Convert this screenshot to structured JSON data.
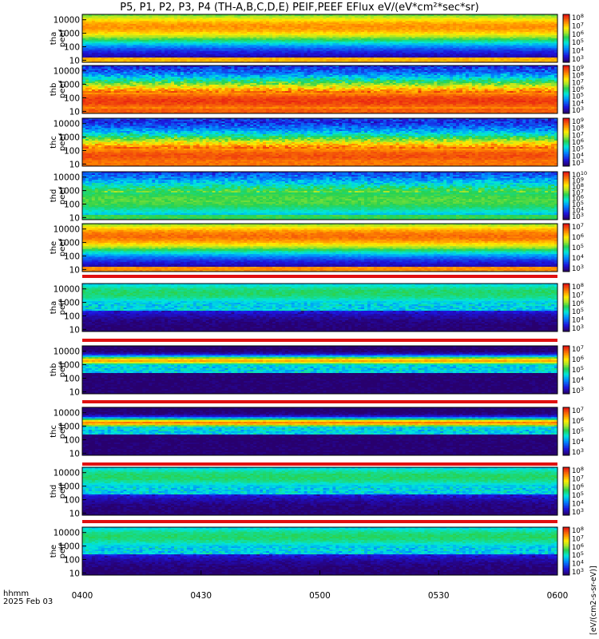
{
  "title": "P5, P1, P2, P3, P4 (TH-A,B,C,D,E) PEIF,PEEF EFlux eV/(eV*cm²*sec*sr)",
  "colorbar_title": "[eV/(cm2-s-sr-eV)]",
  "bottom_labels": [
    "hhmm",
    "2025 Feb 03"
  ],
  "x_ticks": [
    "0400",
    "0430",
    "0500",
    "0530",
    "0600"
  ],
  "y_tick_labels": [
    "10000",
    "1000",
    "100",
    "10"
  ],
  "chart_data": {
    "type": "heatmap",
    "title": "P5, P1, P2, P3, P4 (TH-A,B,C,D,E) PEIF,PEEF EFlux eV/(eV*cm²*sec*sr)",
    "x_range": [
      "04:00",
      "06:00"
    ],
    "date": "2025 Feb 03",
    "y_scale": "log",
    "y_range_eV": [
      7,
      25000
    ],
    "grid": false,
    "panels": [
      {
        "label": [
          "tha",
          "peef"
        ],
        "species": "electron",
        "colorbar_ticks": [
          "10^3",
          "10^4",
          "10^5",
          "10^6",
          "10^7",
          "10^8"
        ],
        "peak_energy_eV": 3000,
        "peak_level": 0.83
      },
      {
        "label": [
          "thb",
          "peef"
        ],
        "species": "electron",
        "colorbar_ticks": [
          "10^3",
          "10^4",
          "10^5",
          "10^6",
          "10^7",
          "10^8",
          "10^9"
        ],
        "peak_energy_eV": 60,
        "peak_level": 0.95
      },
      {
        "label": [
          "thc",
          "peef"
        ],
        "species": "electron",
        "colorbar_ticks": [
          "10^3",
          "10^4",
          "10^5",
          "10^6",
          "10^7",
          "10^8",
          "10^9"
        ],
        "peak_energy_eV": 40,
        "peak_level": 0.92
      },
      {
        "label": [
          "thd",
          "peef"
        ],
        "species": "electron",
        "colorbar_ticks": [
          "10^3",
          "10^4",
          "10^5",
          "10^6",
          "10^7",
          "10^8",
          "10^9",
          "10^10"
        ],
        "peak_energy_eV": 200,
        "peak_level": 0.55
      },
      {
        "label": [
          "the",
          "peef"
        ],
        "species": "electron",
        "colorbar_ticks": [
          "10^3",
          "10^4",
          "10^5",
          "10^6",
          "10^7"
        ],
        "peak_energy_eV": 3000,
        "peak_level": 0.88
      },
      {
        "label": [
          "tha",
          "peif"
        ],
        "species": "ion",
        "colorbar_ticks": [
          "10^3",
          "10^4",
          "10^5",
          "10^6",
          "10^7",
          "10^8"
        ],
        "peak_energy_eV": 5000,
        "peak_level": 0.5
      },
      {
        "label": [
          "thb",
          "peif"
        ],
        "species": "ion",
        "colorbar_ticks": [
          "10^3",
          "10^4",
          "10^5",
          "10^6",
          "10^7"
        ],
        "peak_energy_eV": 2000,
        "peak_level": 0.8
      },
      {
        "label": [
          "thc",
          "peif"
        ],
        "species": "ion",
        "colorbar_ticks": [
          "10^3",
          "10^4",
          "10^5",
          "10^6",
          "10^7"
        ],
        "peak_energy_eV": 1800,
        "peak_level": 0.85
      },
      {
        "label": [
          "thd",
          "peif"
        ],
        "species": "ion",
        "colorbar_ticks": [
          "10^3",
          "10^4",
          "10^5",
          "10^6",
          "10^7",
          "10^8"
        ],
        "peak_energy_eV": 5000,
        "peak_level": 0.5
      },
      {
        "label": [
          "the",
          "peif"
        ],
        "species": "ion",
        "colorbar_ticks": [
          "10^3",
          "10^4",
          "10^5",
          "10^6",
          "10^7",
          "10^8"
        ],
        "peak_energy_eV": 5000,
        "peak_level": 0.5
      }
    ]
  }
}
